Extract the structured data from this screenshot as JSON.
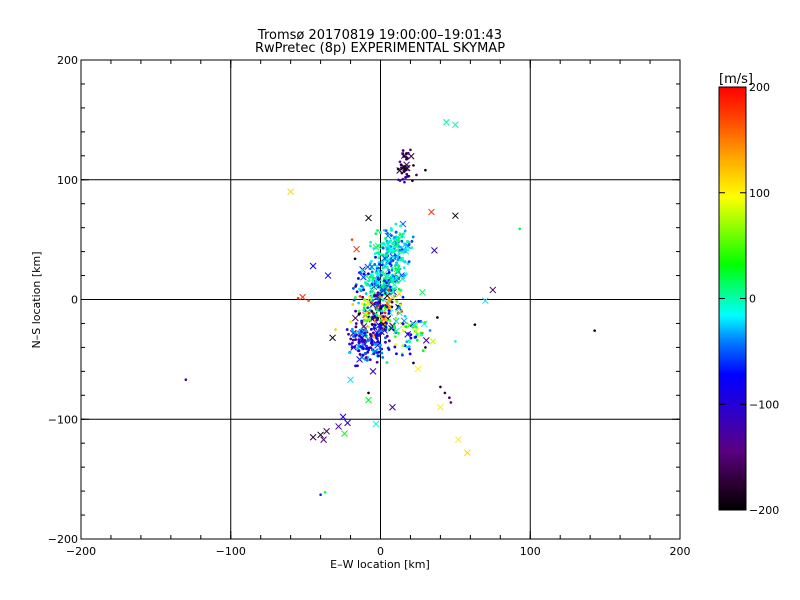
{
  "chart_data": {
    "type": "scatter",
    "title": "Tromsø 20170819 19:00:00–19:01:43",
    "subtitle": "RwPretec (8p) EXPERIMENTAL SKYMAP",
    "xlabel": "E–W location [km]",
    "ylabel": "N–S location [km]",
    "xlim": [
      -200,
      200
    ],
    "ylim": [
      -200,
      200
    ],
    "x_ticks": [
      "−200",
      "−100",
      "0",
      "100",
      "200"
    ],
    "y_ticks": [
      "−200",
      "−100",
      "0",
      "100",
      "200"
    ],
    "grid_lines": [
      -100,
      0,
      100
    ],
    "colorbar": {
      "label": "[m/s]",
      "range": [
        -200,
        200
      ],
      "ticks": [
        "200",
        "100",
        "0",
        "−100",
        "−200"
      ]
    },
    "legend": "none",
    "series": [
      {
        "marker": "x",
        "points": [
          {
            "x": -60,
            "y": 90,
            "v": 110
          },
          {
            "x": 44,
            "y": 148,
            "v": 5
          },
          {
            "x": 50,
            "y": 146,
            "v": 0
          },
          {
            "x": 34,
            "y": 73,
            "v": 180
          },
          {
            "x": 50,
            "y": 70,
            "v": -200
          },
          {
            "x": -8,
            "y": 68,
            "v": -200
          },
          {
            "x": 15,
            "y": 63,
            "v": -50
          },
          {
            "x": 36,
            "y": 41,
            "v": -110
          },
          {
            "x": -16,
            "y": 42,
            "v": 180
          },
          {
            "x": -45,
            "y": 28,
            "v": -80
          },
          {
            "x": -35,
            "y": 20,
            "v": -70
          },
          {
            "x": 5,
            "y": 53,
            "v": -40
          },
          {
            "x": 14,
            "y": 20,
            "v": -60
          },
          {
            "x": 28,
            "y": 6,
            "v": 20
          },
          {
            "x": 70,
            "y": -1,
            "v": -20
          },
          {
            "x": 75,
            "y": 8,
            "v": -160
          },
          {
            "x": -52,
            "y": 2,
            "v": 180
          },
          {
            "x": -10,
            "y": -13,
            "v": 160
          },
          {
            "x": 5,
            "y": -16,
            "v": -200
          },
          {
            "x": -32,
            "y": -32,
            "v": -200
          },
          {
            "x": 35,
            "y": -35,
            "v": 80
          },
          {
            "x": 25,
            "y": -58,
            "v": 100
          },
          {
            "x": -20,
            "y": -67,
            "v": -20
          },
          {
            "x": -8,
            "y": -84,
            "v": 30
          },
          {
            "x": 8,
            "y": -90,
            "v": -130
          },
          {
            "x": 40,
            "y": -90,
            "v": 100
          },
          {
            "x": -3,
            "y": -104,
            "v": -10
          },
          {
            "x": -25,
            "y": -98,
            "v": -90
          },
          {
            "x": -22,
            "y": -103,
            "v": -100
          },
          {
            "x": -28,
            "y": -106,
            "v": -130
          },
          {
            "x": -36,
            "y": -110,
            "v": -160
          },
          {
            "x": -40,
            "y": -113,
            "v": -190
          },
          {
            "x": -45,
            "y": -115,
            "v": -170
          },
          {
            "x": -38,
            "y": -117,
            "v": -150
          },
          {
            "x": -24,
            "y": -112,
            "v": 30
          },
          {
            "x": 52,
            "y": -117,
            "v": 100
          },
          {
            "x": 58,
            "y": -128,
            "v": 110
          },
          {
            "x": -2,
            "y": -5,
            "v": -190
          },
          {
            "x": 8,
            "y": -22,
            "v": -170
          },
          {
            "x": -6,
            "y": -30,
            "v": 150
          },
          {
            "x": 3,
            "y": 10,
            "v": -20
          },
          {
            "x": -12,
            "y": 25,
            "v": -80
          },
          {
            "x": 18,
            "y": 45,
            "v": -40
          },
          {
            "x": 12,
            "y": -8,
            "v": 70
          },
          {
            "x": -14,
            "y": -50,
            "v": -100
          },
          {
            "x": -5,
            "y": -60,
            "v": -110
          }
        ]
      },
      {
        "marker": "dot",
        "points": [
          {
            "x": 15,
            "y": 122,
            "v": -160
          },
          {
            "x": 18,
            "y": 118,
            "v": -180
          },
          {
            "x": 20,
            "y": 125,
            "v": -150
          },
          {
            "x": 13,
            "y": 115,
            "v": -140
          },
          {
            "x": 22,
            "y": 112,
            "v": -190
          },
          {
            "x": 17,
            "y": 108,
            "v": -120
          },
          {
            "x": 19,
            "y": 103,
            "v": -100
          },
          {
            "x": 16,
            "y": 98,
            "v": -90
          },
          {
            "x": 24,
            "y": 104,
            "v": -160
          },
          {
            "x": 30,
            "y": 108,
            "v": -200
          },
          {
            "x": 12,
            "y": 100,
            "v": -110
          },
          {
            "x": 93,
            "y": 59,
            "v": 20
          },
          {
            "x": -19,
            "y": 50,
            "v": 170
          },
          {
            "x": -17,
            "y": 34,
            "v": -200
          },
          {
            "x": -55,
            "y": 1,
            "v": 180
          },
          {
            "x": -48,
            "y": -1,
            "v": 160
          },
          {
            "x": 63,
            "y": -21,
            "v": -200
          },
          {
            "x": 143,
            "y": -26,
            "v": -200
          },
          {
            "x": -130,
            "y": -67,
            "v": -130
          },
          {
            "x": 40,
            "y": -73,
            "v": -180
          },
          {
            "x": 43,
            "y": -78,
            "v": -170
          },
          {
            "x": 46,
            "y": -82,
            "v": -160
          },
          {
            "x": 47,
            "y": -86,
            "v": -140
          },
          {
            "x": 22,
            "y": -53,
            "v": -200
          },
          {
            "x": -8,
            "y": -78,
            "v": -200
          },
          {
            "x": -40,
            "y": -163,
            "v": -60
          },
          {
            "x": -37,
            "y": -161,
            "v": 20
          },
          {
            "x": 50,
            "y": -35,
            "v": 0
          },
          {
            "x": 30,
            "y": -40,
            "v": -200
          },
          {
            "x": 38,
            "y": -15,
            "v": -190
          },
          {
            "x": -30,
            "y": -25,
            "v": 120
          },
          {
            "x": 28,
            "y": -28,
            "v": 150
          }
        ]
      }
    ]
  }
}
